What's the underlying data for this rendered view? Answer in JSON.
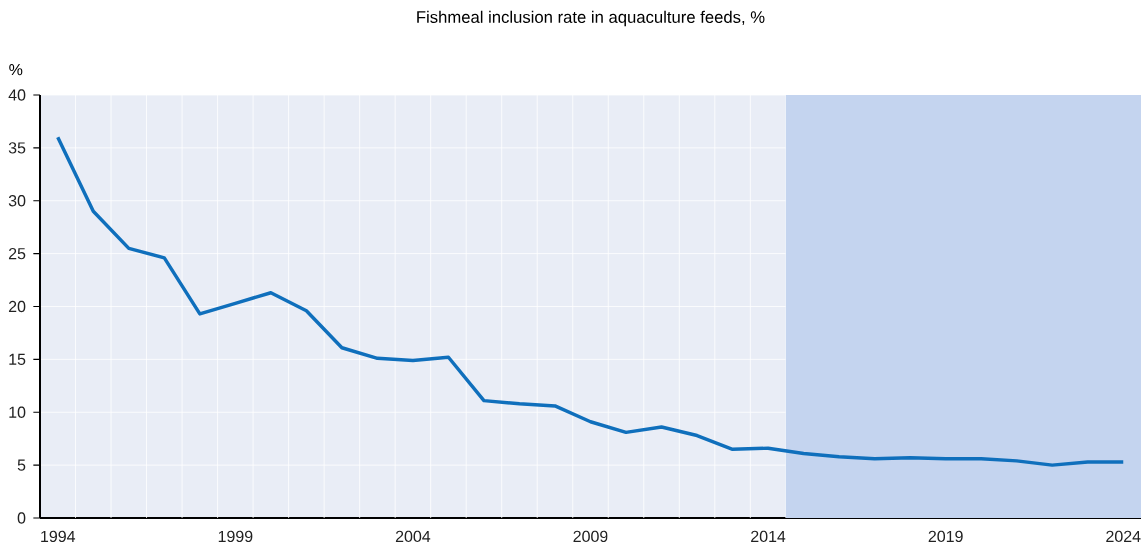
{
  "chart_data": {
    "type": "line",
    "title": "Fishmeal inclusion rate in aquaculture feeds, %",
    "ylabel": "%",
    "x": [
      1994,
      1995,
      1996,
      1997,
      1998,
      1999,
      2000,
      2001,
      2002,
      2003,
      2004,
      2005,
      2006,
      2007,
      2008,
      2009,
      2010,
      2011,
      2012,
      2013,
      2014,
      2015,
      2016,
      2017,
      2018,
      2019,
      2020,
      2021,
      2022,
      2023,
      2024
    ],
    "series": [
      {
        "color": "#0f6fbc",
        "values": [
          36.0,
          29.0,
          25.5,
          24.6,
          19.3,
          20.3,
          21.3,
          19.6,
          16.1,
          15.1,
          14.9,
          15.2,
          11.1,
          10.8,
          10.6,
          9.1,
          8.1,
          8.6,
          7.8,
          6.5,
          6.6,
          6.1,
          5.8,
          5.6,
          5.7,
          5.6,
          5.6,
          5.4,
          5.0,
          5.3,
          5.3
        ]
      }
    ],
    "xlim": [
      1993.5,
      2024.5
    ],
    "ylim": [
      0,
      40
    ],
    "xticks": [
      1994,
      1999,
      2004,
      2009,
      2014,
      2019,
      2024,
      {
        "value": 1994.5,
        "label": null
      },
      {
        "value": 1995.5,
        "label": null
      },
      {
        "value": 1996.5,
        "label": null
      },
      {
        "value": 1997.5,
        "label": null
      },
      {
        "value": 1998.5,
        "label": null
      },
      {
        "value": 1999.5,
        "label": null
      },
      {
        "value": 2000.5,
        "label": null
      },
      {
        "value": 2001.5,
        "label": null
      },
      {
        "value": 2002.5,
        "label": null
      },
      {
        "value": 2003.5,
        "label": null
      },
      {
        "value": 2004.5,
        "label": null
      },
      {
        "value": 2005.5,
        "label": null
      },
      {
        "value": 2006.5,
        "label": null
      },
      {
        "value": 2007.5,
        "label": null
      },
      {
        "value": 2008.5,
        "label": null
      },
      {
        "value": 2009.5,
        "label": null
      },
      {
        "value": 2010.5,
        "label": null
      },
      {
        "value": 2011.5,
        "label": null
      },
      {
        "value": 2012.5,
        "label": null
      },
      {
        "value": 2013.5,
        "label": null
      },
      {
        "value": 2014.5,
        "label": null
      },
      {
        "value": 2015.5,
        "label": null
      },
      {
        "value": 2016.5,
        "label": null
      },
      {
        "value": 2017.5,
        "label": null
      },
      {
        "value": 2018.5,
        "label": null
      },
      {
        "value": 2019.5,
        "label": null
      },
      {
        "value": 2020.5,
        "label": null
      },
      {
        "value": 2021.5,
        "label": null
      },
      {
        "value": 2022.5,
        "label": null
      },
      {
        "value": 2023.5,
        "label": null
      }
    ],
    "yticks": [
      0,
      5,
      10,
      15,
      20,
      25,
      30,
      35,
      40
    ],
    "bands": [
      {
        "axis": "x",
        "from": 2014.5,
        "to": 2024.5,
        "color": "#c4d4ef"
      }
    ],
    "grid": true,
    "marker": "none",
    "line_style": "solid"
  }
}
